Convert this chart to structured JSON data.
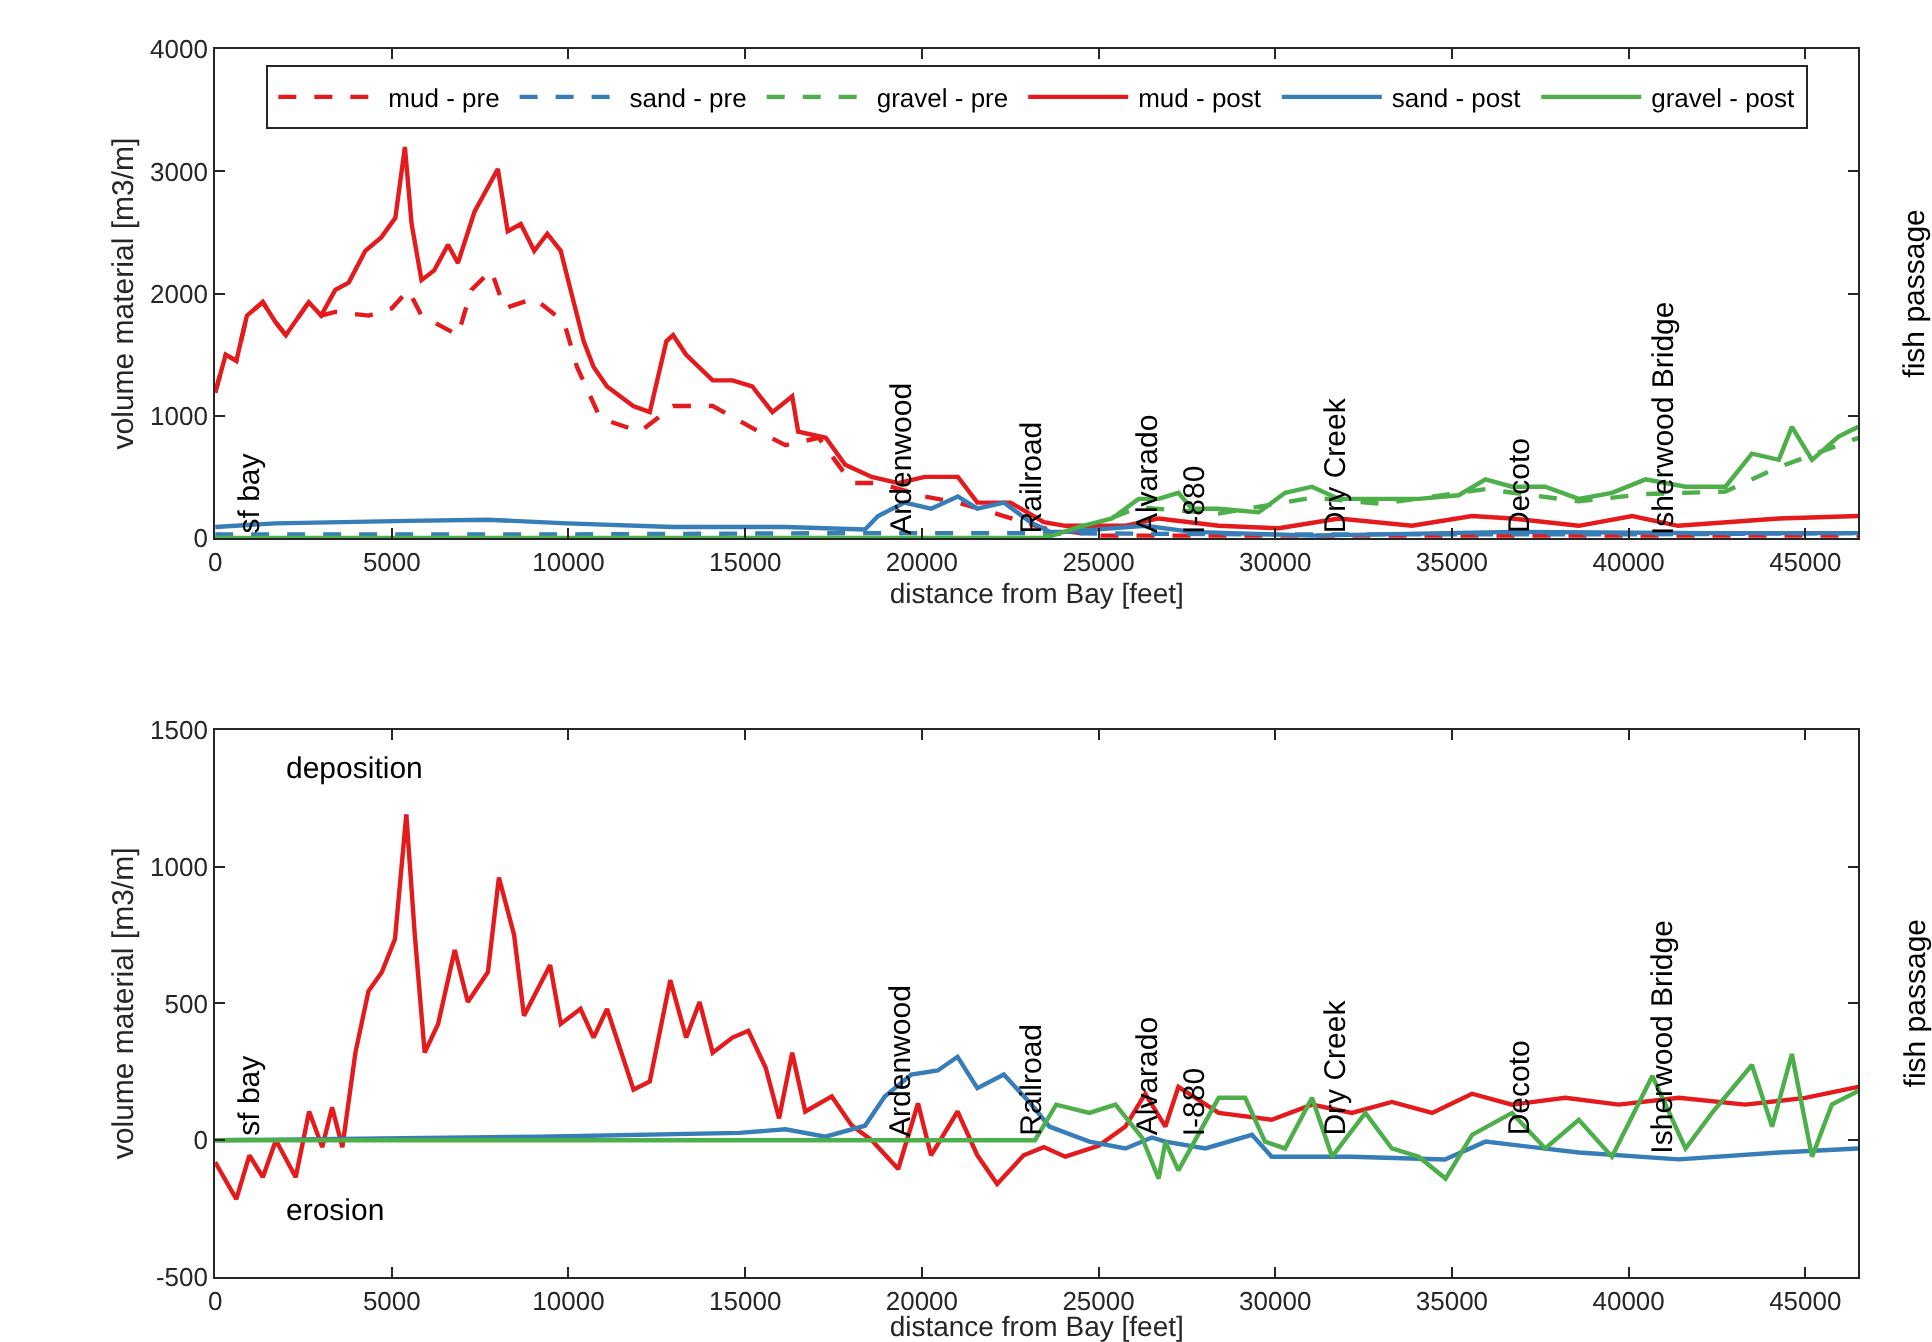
{
  "chart_data": [
    {
      "type": "line",
      "xlabel": "distance from Bay [feet]",
      "ylabel": "volume material [m3/m]",
      "y2label": "fish passage",
      "xlim": [
        0,
        46500
      ],
      "xticks": [
        0,
        5000,
        10000,
        15000,
        20000,
        25000,
        30000,
        35000,
        40000,
        45000
      ],
      "ylim": [
        0,
        4000
      ],
      "yticks": [
        0,
        1000,
        2000,
        3000,
        4000
      ],
      "legend": "top",
      "marker": "none",
      "annotations": [
        {
          "text": "sf bay",
          "x": 1000,
          "y": 0
        },
        {
          "text": "Ardenwood",
          "x": 19400,
          "y": 0
        },
        {
          "text": "Railroad",
          "x": 23100,
          "y": 0
        },
        {
          "text": "Alvarado",
          "x": 26400,
          "y": 0
        },
        {
          "text": "I-880",
          "x": 27700,
          "y": 0
        },
        {
          "text": "Dry Creek",
          "x": 31700,
          "y": 0
        },
        {
          "text": "Decoto",
          "x": 36900,
          "y": 0
        },
        {
          "text": "Isherwood Bridge",
          "x": 41000,
          "y": 0
        }
      ],
      "series": [
        {
          "name": "mud - pre",
          "color": "#e41a1c",
          "line_style": "dashed",
          "x": [
            0,
            300,
            600,
            900,
            1350,
            1700,
            2000,
            2650,
            3000,
            3400,
            4350,
            5000,
            5470,
            5840,
            6870,
            7250,
            7810,
            8190,
            9030,
            9870,
            10240,
            10900,
            12020,
            12960,
            14080,
            15390,
            16140,
            17080,
            18010,
            18760,
            20080,
            21020,
            22320,
            23450,
            25000,
            30000,
            35000,
            40000,
            46500
          ],
          "values": [
            1190,
            1500,
            1450,
            1820,
            1930,
            1770,
            1660,
            1930,
            1820,
            1850,
            1820,
            1880,
            2030,
            1820,
            1660,
            2030,
            2190,
            1880,
            1960,
            1770,
            1400,
            980,
            870,
            1080,
            1080,
            870,
            760,
            820,
            450,
            450,
            340,
            290,
            180,
            80,
            20,
            20,
            20,
            20,
            20
          ]
        },
        {
          "name": "sand - pre",
          "color": "#377eb8",
          "line_style": "dashed",
          "x": [
            0,
            10000,
            18000,
            23000,
            30000,
            40000,
            46500
          ],
          "values": [
            30,
            30,
            40,
            40,
            30,
            30,
            40
          ]
        },
        {
          "name": "gravel - pre",
          "color": "#4daf4a",
          "line_style": "dashed",
          "x": [
            0,
            23000,
            24430,
            26130,
            28400,
            31040,
            33000,
            35950,
            38590,
            40480,
            42740,
            44250,
            46500
          ],
          "values": [
            0,
            0,
            60,
            250,
            200,
            330,
            280,
            400,
            300,
            360,
            380,
            580,
            820
          ]
        },
        {
          "name": "mud - post",
          "color": "#e41a1c",
          "line_style": "solid",
          "x": [
            0,
            300,
            600,
            900,
            1350,
            1700,
            2000,
            2650,
            3000,
            3400,
            3780,
            4250,
            4700,
            5100,
            5370,
            5560,
            5840,
            6200,
            6590,
            6870,
            7340,
            8000,
            8280,
            8650,
            9030,
            9400,
            9780,
            10050,
            10430,
            10710,
            11090,
            11830,
            12300,
            12770,
            12960,
            13330,
            14080,
            14640,
            15200,
            15770,
            16330,
            16500,
            17280,
            17830,
            18580,
            19330,
            20080,
            21020,
            21570,
            22510,
            23450,
            24060,
            25750,
            26700,
            28400,
            30100,
            31800,
            33870,
            35570,
            36700,
            38590,
            40100,
            41400,
            44250,
            46500
          ],
          "values": [
            1190,
            1500,
            1450,
            1820,
            1930,
            1770,
            1660,
            1930,
            1820,
            2030,
            2090,
            2350,
            2460,
            2620,
            3200,
            2570,
            2110,
            2190,
            2400,
            2250,
            2670,
            3020,
            2510,
            2570,
            2350,
            2490,
            2350,
            2040,
            1610,
            1400,
            1240,
            1080,
            1030,
            1610,
            1660,
            1500,
            1290,
            1290,
            1240,
            1030,
            1160,
            870,
            820,
            600,
            500,
            450,
            500,
            500,
            290,
            290,
            130,
            100,
            100,
            160,
            100,
            80,
            160,
            100,
            180,
            160,
            100,
            180,
            100,
            160,
            180
          ]
        },
        {
          "name": "sand - post",
          "color": "#377eb8",
          "line_style": "solid",
          "x": [
            0,
            1700,
            5470,
            7700,
            9960,
            12960,
            16140,
            18390,
            18760,
            19510,
            20260,
            21020,
            21570,
            22320,
            23070,
            23630,
            24060,
            26320,
            27640,
            31040,
            36700,
            42350,
            46500
          ],
          "values": [
            90,
            120,
            140,
            150,
            120,
            90,
            90,
            70,
            180,
            290,
            240,
            340,
            240,
            290,
            130,
            50,
            50,
            100,
            50,
            20,
            50,
            40,
            40
          ]
        },
        {
          "name": "gravel - post",
          "color": "#4daf4a",
          "line_style": "solid",
          "x": [
            0,
            23490,
            24430,
            25380,
            26130,
            26700,
            27260,
            27640,
            28400,
            29530,
            30280,
            31040,
            31800,
            32930,
            34060,
            35190,
            35950,
            36700,
            37640,
            38590,
            39530,
            40480,
            41610,
            42740,
            43490,
            44250,
            44620,
            45190,
            45940,
            46500
          ],
          "values": [
            0,
            0,
            90,
            160,
            320,
            320,
            370,
            240,
            240,
            210,
            370,
            420,
            320,
            320,
            320,
            350,
            480,
            420,
            420,
            320,
            370,
            480,
            420,
            420,
            690,
            640,
            910,
            640,
            830,
            910
          ]
        }
      ]
    },
    {
      "type": "line",
      "xlabel": "distance from Bay [feet]",
      "ylabel": "volume material [m3/m]",
      "y2label": "fish passage",
      "xlim": [
        0,
        46500
      ],
      "xticks": [
        0,
        5000,
        10000,
        15000,
        20000,
        25000,
        30000,
        35000,
        40000,
        45000
      ],
      "ylim": [
        -500,
        1500
      ],
      "yticks": [
        -500,
        0,
        500,
        1000,
        1500
      ],
      "legend": false,
      "marker": "none",
      "annotations": [
        "deposition",
        "erosion",
        {
          "text": "sf bay",
          "x": 1000,
          "y": 0
        },
        {
          "text": "Ardenwood",
          "x": 19400,
          "y": 0
        },
        {
          "text": "Railroad",
          "x": 23100,
          "y": 0
        },
        {
          "text": "Alvarado",
          "x": 26400,
          "y": 0
        },
        {
          "text": "I-880",
          "x": 27700,
          "y": 0
        },
        {
          "text": "Dry Creek",
          "x": 31700,
          "y": 0
        },
        {
          "text": "Decoto",
          "x": 36900,
          "y": 0
        },
        {
          "text": "Isherwood Bridge",
          "x": 41000,
          "y": -60
        }
      ],
      "series": [
        {
          "color": "#e41a1c",
          "line_style": "solid",
          "x": [
            0,
            600,
            970,
            1350,
            1720,
            2280,
            2660,
            3030,
            3310,
            3600,
            3970,
            4340,
            4720,
            5090,
            5410,
            5650,
            5930,
            6310,
            6780,
            7150,
            7720,
            8030,
            8460,
            8740,
            9480,
            9780,
            10340,
            10710,
            11090,
            11840,
            12300,
            12880,
            13330,
            13710,
            14080,
            14640,
            15090,
            15580,
            15960,
            16330,
            16700,
            17450,
            18010,
            18580,
            19330,
            19890,
            20260,
            21010,
            21570,
            22130,
            22880,
            23450,
            24060,
            25000,
            25760,
            26320,
            26890,
            27260,
            28400,
            29900,
            31040,
            32170,
            33300,
            34440,
            35570,
            36700,
            38210,
            39720,
            41420,
            43300,
            45000,
            46500
          ],
          "values": [
            -80,
            -215,
            -55,
            -135,
            0,
            -135,
            105,
            -25,
            120,
            -25,
            320,
            545,
            615,
            735,
            1190,
            750,
            320,
            425,
            695,
            505,
            615,
            960,
            750,
            455,
            640,
            425,
            480,
            375,
            480,
            185,
            215,
            585,
            375,
            505,
            320,
            375,
            400,
            265,
            80,
            320,
            105,
            160,
            55,
            0,
            -105,
            135,
            -55,
            105,
            -55,
            -160,
            -55,
            -25,
            -60,
            -20,
            50,
            170,
            50,
            195,
            100,
            75,
            130,
            100,
            140,
            100,
            170,
            130,
            155,
            130,
            155,
            130,
            155,
            195
          ]
        },
        {
          "color": "#377eb8",
          "line_style": "solid",
          "x": [
            0,
            9200,
            14830,
            16140,
            17270,
            18390,
            18950,
            19700,
            20450,
            21010,
            21570,
            22320,
            23070,
            23610,
            24740,
            25760,
            26510,
            26890,
            28020,
            29340,
            29900,
            32170,
            34800,
            35950,
            38590,
            41420,
            44250,
            46500
          ],
          "values": [
            0,
            13,
            27,
            40,
            13,
            53,
            160,
            240,
            255,
            305,
            190,
            240,
            135,
            50,
            -5,
            -30,
            10,
            -5,
            -30,
            20,
            -60,
            -60,
            -70,
            -5,
            -45,
            -70,
            -45,
            -30
          ]
        },
        {
          "color": "#4daf4a",
          "line_style": "solid",
          "x": [
            0,
            23200,
            23800,
            24740,
            25480,
            26230,
            26700,
            26890,
            27260,
            28400,
            29150,
            29710,
            30280,
            31040,
            31610,
            32550,
            33300,
            34060,
            34820,
            35570,
            36700,
            37640,
            38590,
            39530,
            40670,
            41610,
            42360,
            43490,
            44060,
            44620,
            45190,
            45750,
            46500
          ],
          "values": [
            0,
            0,
            130,
            100,
            130,
            10,
            -140,
            -5,
            -110,
            155,
            155,
            -5,
            -30,
            155,
            -60,
            100,
            -30,
            -60,
            -140,
            20,
            100,
            -30,
            75,
            -60,
            235,
            -30,
            100,
            275,
            50,
            315,
            -60,
            130,
            180
          ]
        }
      ]
    }
  ]
}
